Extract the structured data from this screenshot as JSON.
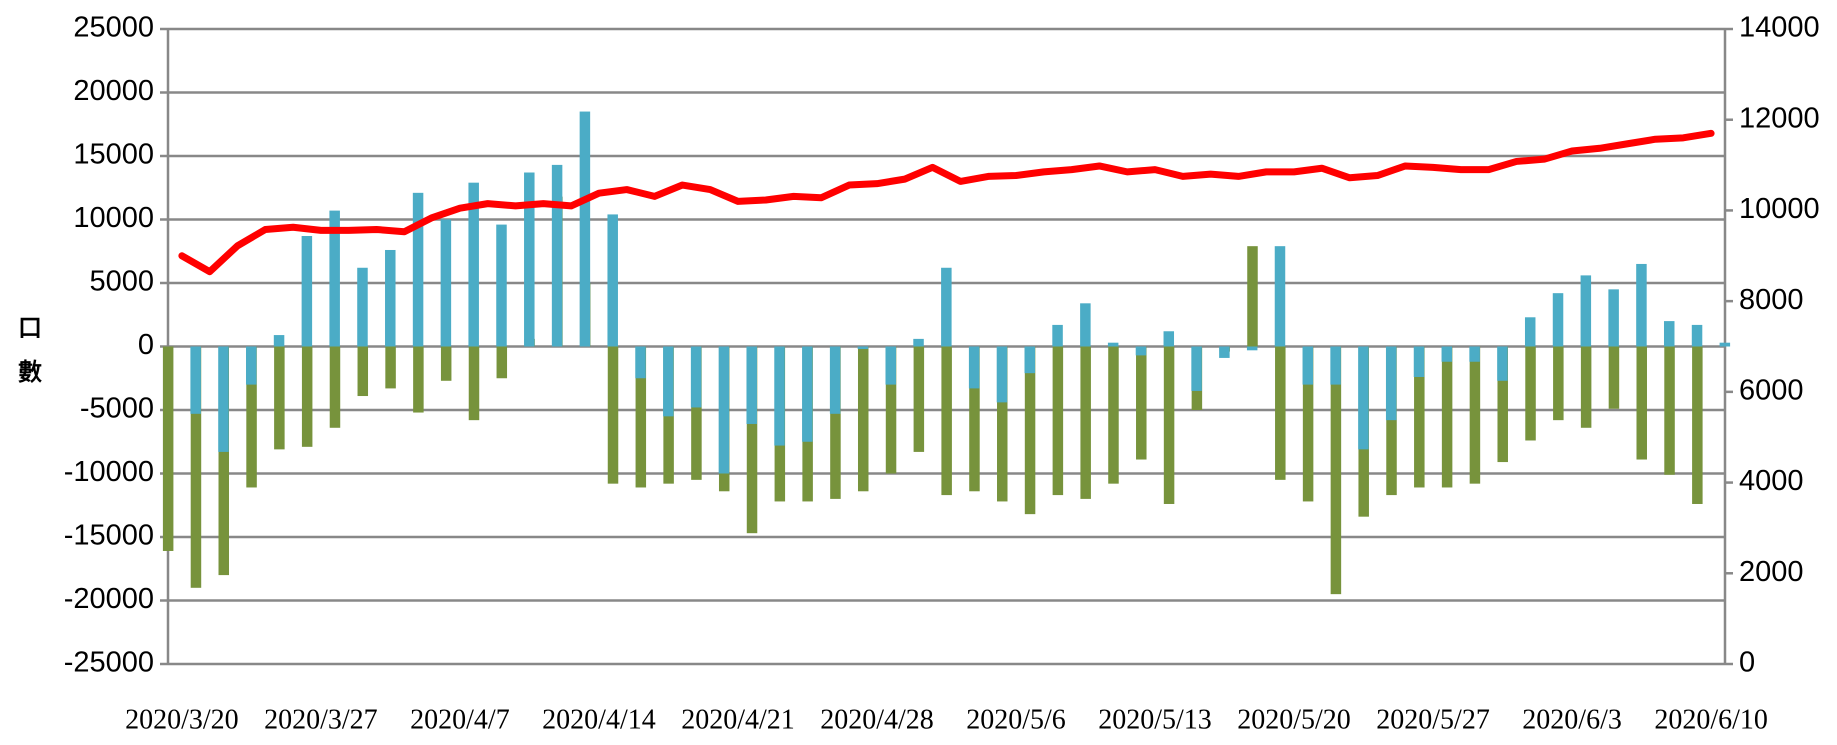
{
  "chart_data": {
    "type": "bar",
    "y_label": "口數",
    "categories": [
      "2020/3/20",
      null,
      null,
      null,
      null,
      "2020/3/27",
      null,
      null,
      null,
      null,
      "2020/4/7",
      null,
      null,
      null,
      null,
      "2020/4/14",
      null,
      null,
      null,
      null,
      "2020/4/21",
      null,
      null,
      null,
      null,
      "2020/4/28",
      null,
      null,
      null,
      null,
      "2020/5/6",
      null,
      null,
      null,
      null,
      "2020/5/13",
      null,
      null,
      null,
      null,
      "2020/5/20",
      null,
      null,
      null,
      null,
      "2020/5/27",
      null,
      null,
      null,
      null,
      "2020/6/3",
      null,
      null,
      null,
      null,
      "2020/6/10"
    ],
    "series": [
      {
        "color": "#77933c",
        "values": [
          -16100,
          -19000,
          -18000,
          -11100,
          -8100,
          -7900,
          -6400,
          -3900,
          -3300,
          -5200,
          -2700,
          -5800,
          -2500,
          600,
          11800,
          5000,
          -10800,
          -11100,
          -10800,
          -10500,
          -11400,
          -14700,
          -12200,
          -12200,
          -12000,
          -11400,
          -10000,
          -8300,
          -11700,
          -11400,
          -12200,
          -13200,
          -11700,
          -12000,
          -10800,
          -8900,
          -12400,
          -5000,
          -400,
          7900,
          -10500,
          -12200,
          -19500,
          -13400,
          -11700,
          -11100,
          -11100,
          -10800,
          -9100,
          -7400,
          -5800,
          -6400,
          -4900,
          -8900,
          -10100,
          -12400
        ]
      },
      {
        "color": "#4bacc6",
        "values": [
          -5300,
          -8300,
          -3000,
          900,
          8700,
          10700,
          6200,
          7600,
          12100,
          10000,
          12900,
          9600,
          13700,
          14300,
          18500,
          10400,
          -2500,
          -5500,
          -4800,
          -10000,
          -6100,
          -7800,
          -7500,
          -5300,
          -200,
          -3000,
          600,
          6200,
          -3300,
          -4400,
          -2100,
          1700,
          3400,
          300,
          -700,
          1200,
          -3500,
          -900,
          -300,
          7900,
          -3000,
          -3000,
          -8100,
          -5800,
          -2400,
          -1200,
          -1200,
          -2700,
          2300,
          4200,
          5600,
          4500,
          6500,
          2000,
          1700,
          300
        ]
      },
      {
        "type": "line",
        "axis": "y2",
        "color": "#ff0000",
        "values": [
          9000,
          8650,
          9220,
          9580,
          9630,
          9560,
          9560,
          9580,
          9530,
          9840,
          10050,
          10150,
          10100,
          10150,
          10100,
          10380,
          10460,
          10310,
          10560,
          10460,
          10200,
          10230,
          10310,
          10280,
          10560,
          10590,
          10690,
          10950,
          10640,
          10750,
          10770,
          10850,
          10900,
          10980,
          10850,
          10900,
          10750,
          10800,
          10750,
          10850,
          10850,
          10930,
          10720,
          10770,
          10980,
          10950,
          10900,
          10900,
          11080,
          11130,
          11310,
          11370,
          11470,
          11570,
          11600,
          11700
        ]
      }
    ],
    "ylim": [
      -25000,
      25000
    ],
    "yticks": [
      -25000,
      -20000,
      -15000,
      -10000,
      -5000,
      0,
      5000,
      10000,
      15000,
      20000,
      25000
    ],
    "y2lim": [
      0,
      14000
    ],
    "y2ticks": [
      0,
      2000,
      4000,
      6000,
      8000,
      10000,
      12000,
      14000
    ],
    "grid": true
  }
}
